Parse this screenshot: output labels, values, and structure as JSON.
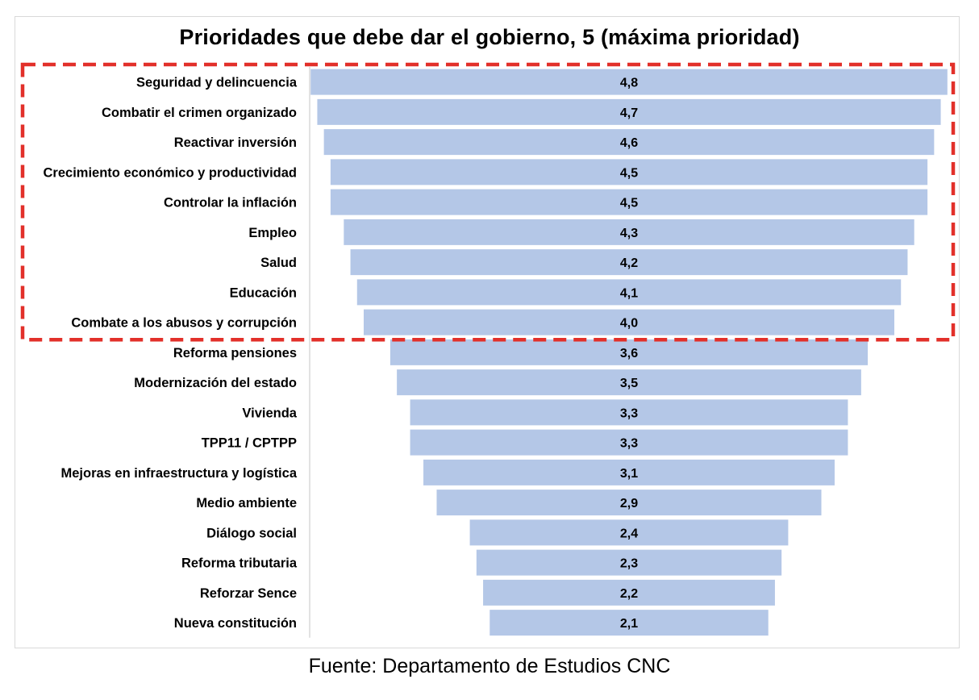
{
  "chart_data": {
    "type": "bar",
    "orientation": "horizontal",
    "bar_alignment": "centered",
    "title": "Prioridades que debe dar el gobierno, 5 (máxima prioridad)",
    "xlabel": "",
    "ylabel": "",
    "grid": false,
    "legend": "none",
    "categories": [
      "Seguridad y delincuencia",
      "Combatir el crimen organizado",
      "Reactivar inversión",
      "Crecimiento económico y productividad",
      "Controlar la inflación",
      "Empleo",
      "Salud",
      "Educación",
      "Combate a los abusos y corrupción",
      "Reforma pensiones",
      "Modernización del estado",
      "Vivienda",
      "TPP11 / CPTPP",
      "Mejoras en infraestructura y logística",
      "Medio ambiente",
      "Diálogo social",
      "Reforma tributaria",
      "Reforzar Sence",
      "Nueva constitución"
    ],
    "values": [
      4.8,
      4.7,
      4.6,
      4.5,
      4.5,
      4.3,
      4.2,
      4.1,
      4.0,
      3.6,
      3.5,
      3.3,
      3.3,
      3.1,
      2.9,
      2.4,
      2.3,
      2.2,
      2.1
    ],
    "value_labels": [
      "4,8",
      "4,7",
      "4,6",
      "4,5",
      "4,5",
      "4,3",
      "4,2",
      "4,1",
      "4,0",
      "3,6",
      "3,5",
      "3,3",
      "3,3",
      "3,1",
      "2,9",
      "2,4",
      "2,3",
      "2,2",
      "2,1"
    ],
    "highlight": {
      "first_index": 0,
      "last_index": 8,
      "style": "dashed-box"
    },
    "colors": {
      "bar": "#b4c7e7",
      "highlight_box": "#e2302a",
      "text": "#000000"
    }
  },
  "source": "Fuente: Departamento de Estudios CNC"
}
